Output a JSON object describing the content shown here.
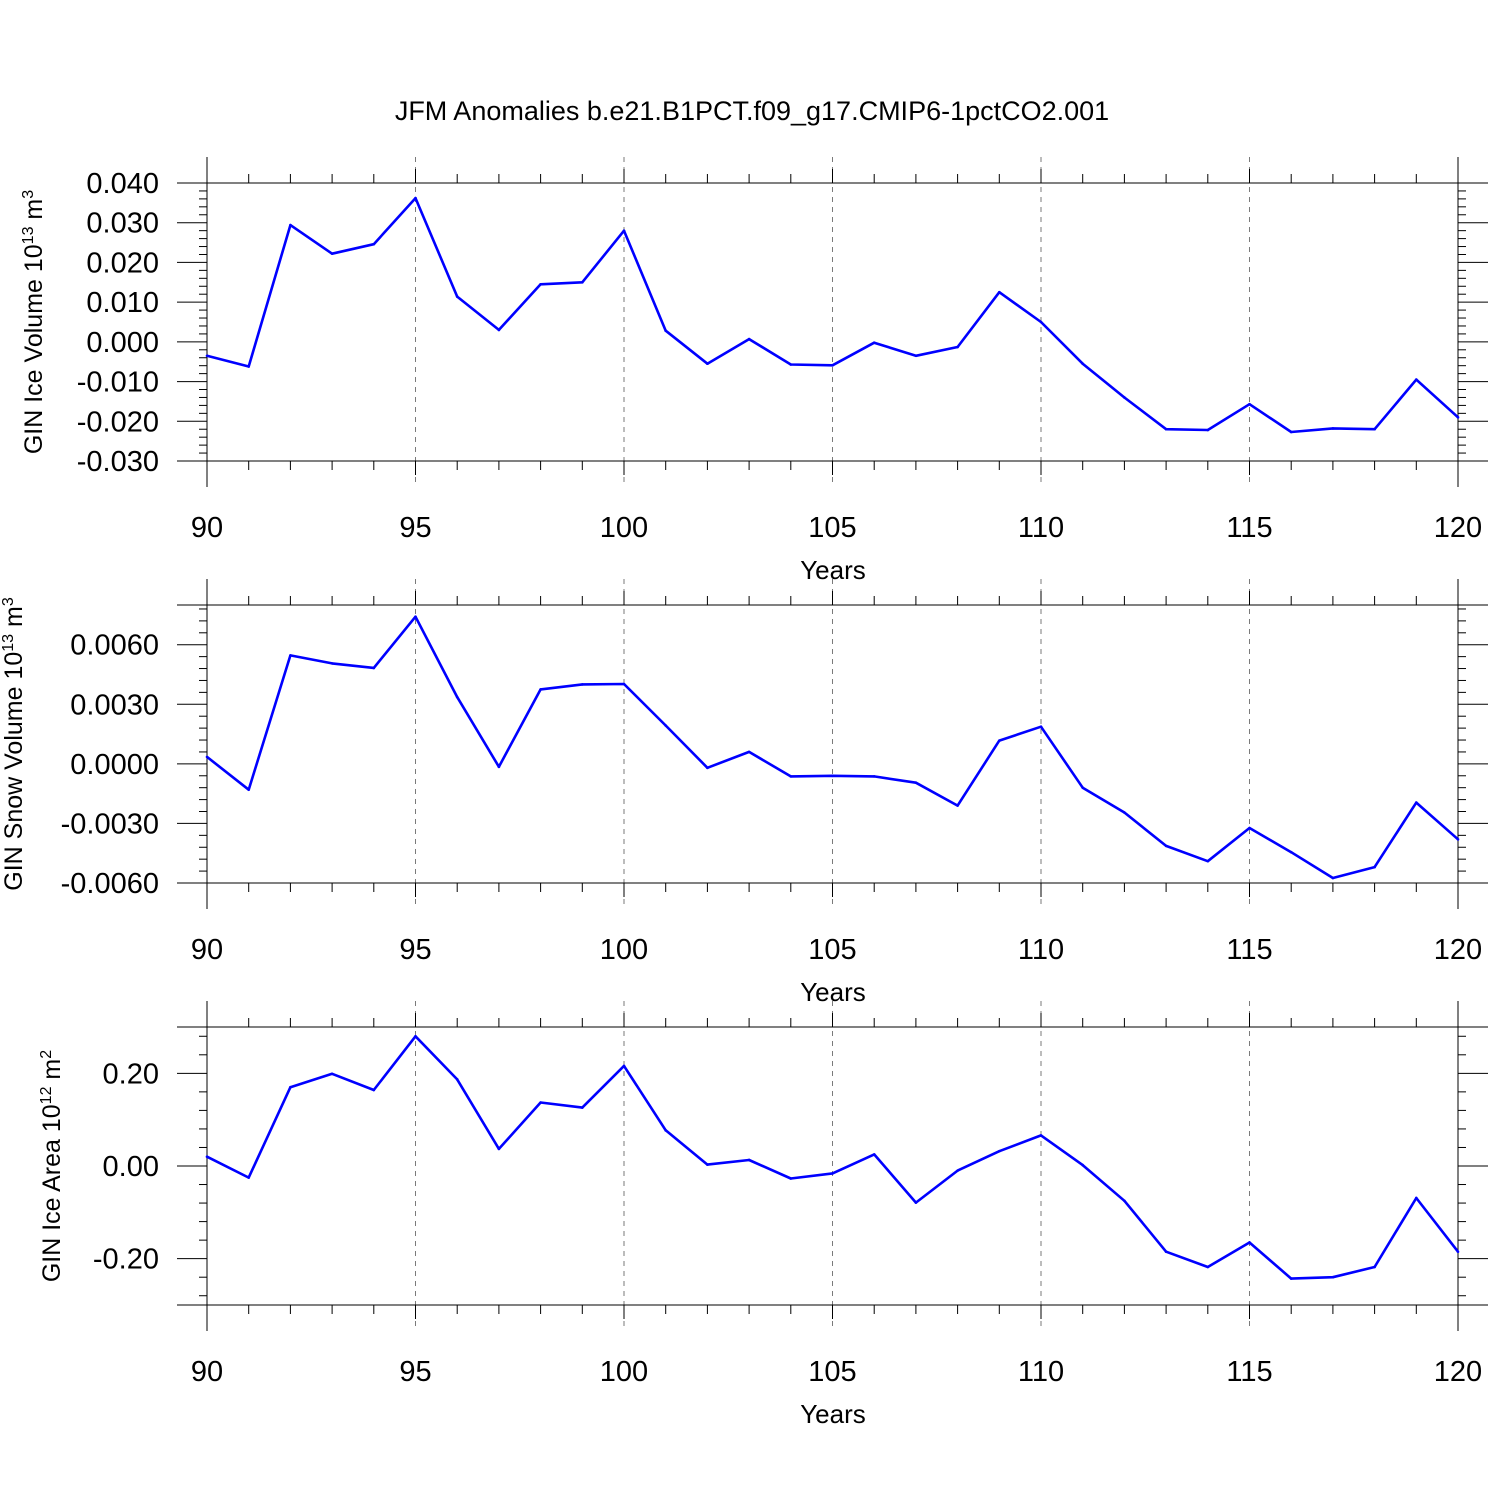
{
  "title": "JFM Anomalies b.e21.B1PCT.f09_g17.CMIP6-1pctCO2.001",
  "chart_data": [
    {
      "type": "line",
      "ylabel_main": "GIN Ice Volume 10",
      "ylabel_exp": "13",
      "ylabel_unit": " m",
      "ylabel_unit_exp": "3",
      "xlabel": "Years",
      "xlim": [
        90,
        120
      ],
      "ylim": [
        -0.03,
        0.04
      ],
      "xticks": [
        90,
        95,
        100,
        105,
        110,
        115,
        120
      ],
      "xtick_labels": [
        "90",
        "95",
        "100",
        "105",
        "110",
        "115",
        "120"
      ],
      "yticks": [
        0.04,
        0.03,
        0.02,
        0.01,
        0.0,
        -0.01,
        -0.02,
        -0.03
      ],
      "ytick_labels": [
        "0.040",
        "0.030",
        "0.020",
        "0.010",
        "0.000",
        "-0.010",
        "-0.020",
        "-0.030"
      ],
      "grid": "dashed vertical at major x ticks",
      "line_color": "#0000ff",
      "x": [
        90,
        91,
        92,
        93,
        94,
        95,
        96,
        97,
        98,
        99,
        100,
        101,
        102,
        103,
        104,
        105,
        106,
        107,
        108,
        109,
        110,
        111,
        112,
        113,
        114,
        115,
        116,
        117,
        118,
        119,
        120
      ],
      "y": [
        -0.0035,
        -0.0062,
        0.0294,
        0.0222,
        0.0246,
        0.0362,
        0.0114,
        0.003,
        0.0145,
        0.015,
        0.028,
        0.0028,
        -0.0055,
        0.0007,
        -0.0057,
        -0.0059,
        -0.0002,
        -0.0035,
        -0.0013,
        0.0125,
        0.005,
        -0.0055,
        -0.014,
        -0.022,
        -0.0222,
        -0.0157,
        -0.0227,
        -0.0218,
        -0.022,
        -0.0095,
        -0.019
      ]
    },
    {
      "type": "line",
      "ylabel_main": "GIN Snow Volume 10",
      "ylabel_exp": "13",
      "ylabel_unit": " m",
      "ylabel_unit_exp": "3",
      "xlabel": "Years",
      "xlim": [
        90,
        120
      ],
      "ylim": [
        -0.006,
        0.008
      ],
      "xticks": [
        90,
        95,
        100,
        105,
        110,
        115,
        120
      ],
      "xtick_labels": [
        "90",
        "95",
        "100",
        "105",
        "110",
        "115",
        "120"
      ],
      "yticks": [
        0.006,
        0.003,
        0.0,
        -0.003,
        -0.006
      ],
      "ytick_labels": [
        "0.0060",
        "0.0030",
        "0.0000",
        "-0.0030",
        "-0.0060"
      ],
      "grid": "dashed vertical at major x ticks",
      "line_color": "#0000ff",
      "x": [
        90,
        91,
        92,
        93,
        94,
        95,
        96,
        97,
        98,
        99,
        100,
        101,
        102,
        103,
        104,
        105,
        106,
        107,
        108,
        109,
        110,
        111,
        112,
        113,
        114,
        115,
        116,
        117,
        118,
        119,
        120
      ],
      "y": [
        0.00035,
        -0.0013,
        0.00546,
        0.00506,
        0.00483,
        0.00741,
        0.00336,
        -0.00015,
        0.00375,
        0.004,
        0.00402,
        0.00193,
        -0.0002,
        0.0006,
        -0.00063,
        -0.0006,
        -0.00063,
        -0.00095,
        -0.0021,
        0.00117,
        0.00187,
        -0.0012,
        -0.00245,
        -0.00413,
        -0.0049,
        -0.00323,
        -0.00445,
        -0.00575,
        -0.0052,
        -0.00195,
        -0.0038
      ]
    },
    {
      "type": "line",
      "ylabel_main": "GIN Ice Area 10",
      "ylabel_exp": "12",
      "ylabel_unit": " m",
      "ylabel_unit_exp": "2",
      "xlabel": "Years",
      "xlim": [
        90,
        120
      ],
      "ylim": [
        -0.3,
        0.3
      ],
      "xticks": [
        90,
        95,
        100,
        105,
        110,
        115,
        120
      ],
      "xtick_labels": [
        "90",
        "95",
        "100",
        "105",
        "110",
        "115",
        "120"
      ],
      "yticks": [
        0.2,
        0.0,
        -0.2
      ],
      "ytick_labels": [
        "0.20",
        "0.00",
        "-0.20"
      ],
      "grid": "dashed vertical at major x ticks",
      "line_color": "#0000ff",
      "x": [
        90,
        91,
        92,
        93,
        94,
        95,
        96,
        97,
        98,
        99,
        100,
        101,
        102,
        103,
        104,
        105,
        106,
        107,
        108,
        109,
        110,
        111,
        112,
        113,
        114,
        115,
        116,
        117,
        118,
        119,
        120
      ],
      "y": [
        0.02,
        -0.025,
        0.17,
        0.199,
        0.164,
        0.28,
        0.187,
        0.037,
        0.137,
        0.126,
        0.216,
        0.077,
        0.003,
        0.013,
        -0.027,
        -0.016,
        0.025,
        -0.079,
        -0.01,
        0.032,
        0.066,
        0.002,
        -0.075,
        -0.185,
        -0.218,
        -0.165,
        -0.243,
        -0.24,
        -0.218,
        -0.069,
        -0.185
      ]
    }
  ]
}
